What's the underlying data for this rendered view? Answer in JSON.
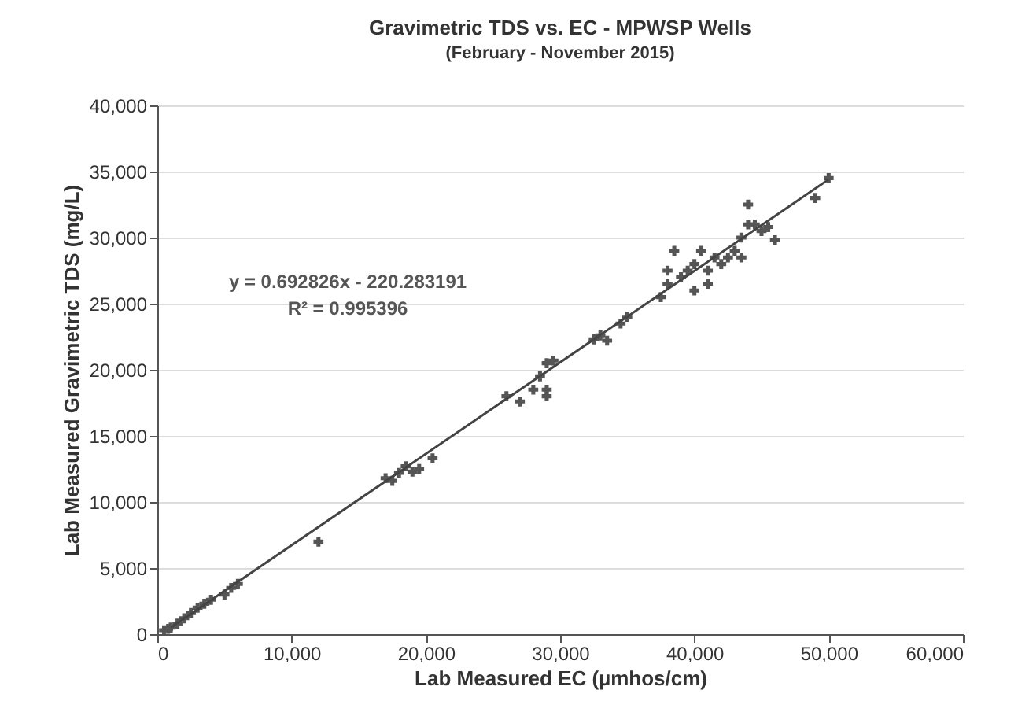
{
  "chart_data": {
    "type": "scatter",
    "title": "Gravimetric TDS vs. EC - MPWSP Wells",
    "subtitle": "(February - November 2015)",
    "xlabel": "Lab Measured EC (µmhos/cm)",
    "ylabel": "Lab Measured Gravimetric TDS (mg/L)",
    "xlim": [
      0,
      60000
    ],
    "xticks": [
      0,
      {
        "value": 10000,
        "label": "10,000"
      },
      {
        "value": 20000,
        "label": "20,000"
      },
      {
        "value": 30000,
        "label": "30,000"
      },
      {
        "value": 40000,
        "label": "40,000"
      },
      {
        "value": 50000,
        "label": "50,000"
      },
      {
        "value": 60000,
        "label": "60,000"
      }
    ],
    "ylim": [
      0,
      40000
    ],
    "yticks": [
      0,
      {
        "value": 5000,
        "label": "5,000"
      },
      {
        "value": 10000,
        "label": "10,000"
      },
      {
        "value": 15000,
        "label": "15,000"
      },
      {
        "value": 20000,
        "label": "20,000"
      },
      {
        "value": 25000,
        "label": "25,000"
      },
      {
        "value": 30000,
        "label": "30,000"
      },
      {
        "value": 35000,
        "label": "35,000"
      },
      {
        "value": 40000,
        "label": "40,000"
      }
    ],
    "grid": "y",
    "marker": "cross",
    "annotations": [
      "y = 0.692826x - 220.283191",
      "R² = 0.995396"
    ],
    "series": [
      {
        "color": "#555555",
        "x": [
          500,
          800,
          1000,
          1500,
          2000,
          2500,
          3000,
          3500,
          4000,
          5000,
          5500,
          6000,
          12000,
          17000,
          17500,
          18000,
          18500,
          19000,
          19500,
          20500,
          26000,
          27000,
          28000,
          28500,
          29000,
          29000,
          29500,
          29000,
          32500,
          33000,
          33500,
          34500,
          35000,
          37500,
          38000,
          38000,
          38500,
          39000,
          39500,
          40000,
          40000,
          40500,
          41000,
          41000,
          41500,
          42000,
          42500,
          43000,
          43500,
          43500,
          44000,
          44000,
          44500,
          45000,
          45500,
          46000,
          49000,
          50000
        ],
        "values": [
          300,
          400,
          500,
          800,
          1200,
          1600,
          2000,
          2300,
          2600,
          3000,
          3500,
          3800,
          7000,
          11800,
          11600,
          12200,
          12700,
          12300,
          12500,
          13300,
          18000,
          17600,
          18500,
          19500,
          20500,
          18500,
          20700,
          18000,
          22300,
          22600,
          22200,
          23500,
          24000,
          25500,
          26500,
          27500,
          29000,
          27000,
          27500,
          26000,
          28000,
          29000,
          27500,
          26500,
          28500,
          28000,
          28500,
          29000,
          30000,
          28500,
          31000,
          32500,
          31000,
          30500,
          30800,
          29800,
          33000,
          34500
        ]
      },
      {
        "type": "line",
        "marker": "none",
        "color": "#444444",
        "x": [
          1000,
          50000
        ],
        "values": [
          500,
          34400
        ]
      }
    ]
  }
}
